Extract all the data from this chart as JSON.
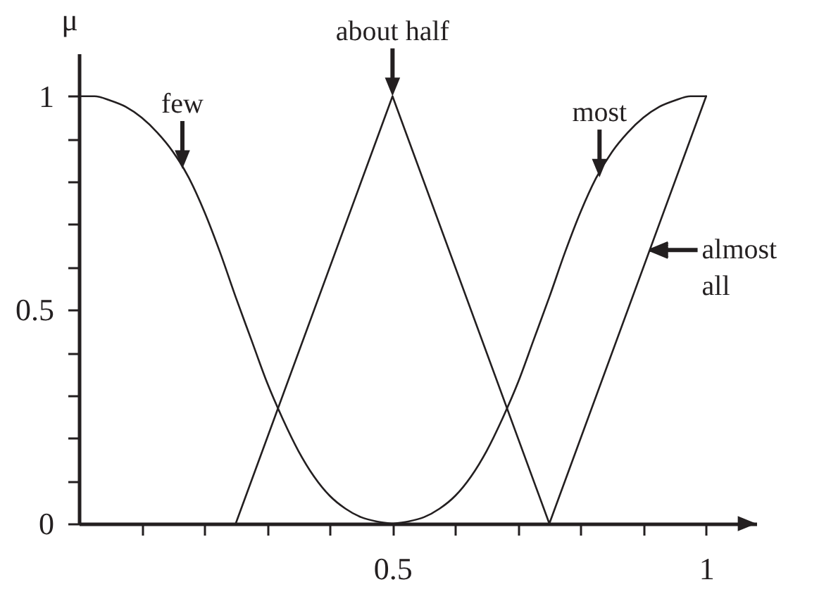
{
  "chart_data": {
    "type": "line",
    "ylabel": "μ",
    "xlim": [
      0,
      1.08
    ],
    "ylim": [
      0,
      1.1
    ],
    "xticks": [
      {
        "value": 0.1,
        "label": null
      },
      {
        "value": 0.2,
        "label": null
      },
      {
        "value": 0.3,
        "label": null
      },
      {
        "value": 0.4,
        "label": null
      },
      0.5,
      {
        "value": 0.6,
        "label": null
      },
      {
        "value": 0.7,
        "label": null
      },
      {
        "value": 0.8,
        "label": null
      },
      {
        "value": 0.9,
        "label": null
      },
      1
    ],
    "yticks": [
      0,
      {
        "value": 0.1,
        "label": null
      },
      {
        "value": 0.2,
        "label": null
      },
      {
        "value": 0.3,
        "label": null
      },
      {
        "value": 0.4,
        "label": null
      },
      0.5,
      {
        "value": 0.6,
        "label": null
      },
      {
        "value": 0.7,
        "label": null
      },
      {
        "value": 0.8,
        "label": null
      },
      {
        "value": 0.9,
        "label": null
      },
      1
    ],
    "grid": false,
    "legend": false,
    "marker": "none",
    "line_style": "solid",
    "series": [
      {
        "color": "#231f20",
        "x": [
          0,
          0.025,
          0.05,
          0.075,
          0.1,
          0.125,
          0.15,
          0.175,
          0.2,
          0.225,
          0.25,
          0.275,
          0.3,
          0.325,
          0.35,
          0.375,
          0.4,
          0.425,
          0.45,
          0.475,
          0.5
        ],
        "values": [
          1,
          1,
          0.99,
          0.975,
          0.95,
          0.915,
          0.87,
          0.81,
          0.73,
          0.635,
          0.53,
          0.43,
          0.33,
          0.245,
          0.17,
          0.11,
          0.065,
          0.035,
          0.015,
          0.005,
          0
        ]
      },
      {
        "color": "#231f20",
        "x": [
          0.25,
          0.5,
          0.75
        ],
        "values": [
          0,
          1,
          0
        ]
      },
      {
        "color": "#231f20",
        "x": [
          0.5,
          0.525,
          0.55,
          0.575,
          0.6,
          0.625,
          0.65,
          0.675,
          0.7,
          0.725,
          0.75,
          0.775,
          0.8,
          0.825,
          0.85,
          0.875,
          0.9,
          0.925,
          0.95,
          0.975,
          1
        ],
        "values": [
          0,
          0.005,
          0.015,
          0.035,
          0.065,
          0.11,
          0.17,
          0.245,
          0.33,
          0.43,
          0.53,
          0.635,
          0.73,
          0.81,
          0.87,
          0.915,
          0.95,
          0.975,
          0.99,
          1,
          1
        ]
      },
      {
        "color": "#231f20",
        "x": [
          0.75,
          1
        ],
        "values": [
          0,
          1
        ]
      }
    ],
    "annotations": [
      {
        "text": "few",
        "x": 0.165,
        "y": 0.83
      },
      {
        "text": "about half",
        "x": 0.5,
        "y": 1
      },
      {
        "text": "most",
        "x": 0.83,
        "y": 0.81
      },
      {
        "text": "almost all",
        "x": 0.91,
        "y": 0.64
      }
    ]
  }
}
